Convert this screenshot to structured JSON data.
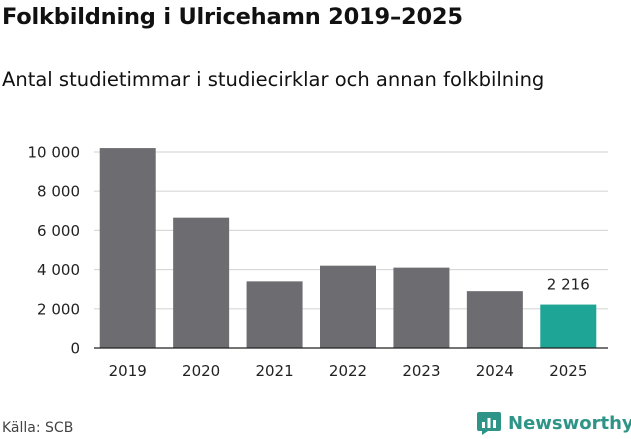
{
  "title": "Folkbildning i Ulricehamn 2019–2025",
  "subtitle": "Antal studietimmar i studiecirklar och annan folkbilning",
  "source": "Källa: SCB",
  "brand": {
    "name": "Newsworthy",
    "icon": "newsworthy-logo-icon",
    "color": "#2e9488"
  },
  "colors": {
    "bar": "#6d6c71",
    "highlight": "#1fa596",
    "grid": "#d9d9d9",
    "axis": "#222222"
  },
  "chart_data": {
    "type": "bar",
    "title": "Folkbildning i Ulricehamn 2019–2025",
    "subtitle": "Antal studietimmar i studiecirklar och annan folkbilning",
    "xlabel": "",
    "ylabel": "",
    "categories": [
      "2019",
      "2020",
      "2021",
      "2022",
      "2023",
      "2024",
      "2025"
    ],
    "values": [
      10200,
      6650,
      3400,
      4200,
      4100,
      2900,
      2216
    ],
    "highlight_index": 6,
    "data_labels": [
      {
        "index": 6,
        "text": "2 216"
      }
    ],
    "ylim": [
      0,
      10000
    ],
    "yticks": [
      0,
      2000,
      4000,
      6000,
      8000,
      10000
    ],
    "ytick_labels": [
      "0",
      "2 000",
      "4 000",
      "6 000",
      "8 000",
      "10 000"
    ],
    "grid": true,
    "legend": "none"
  }
}
